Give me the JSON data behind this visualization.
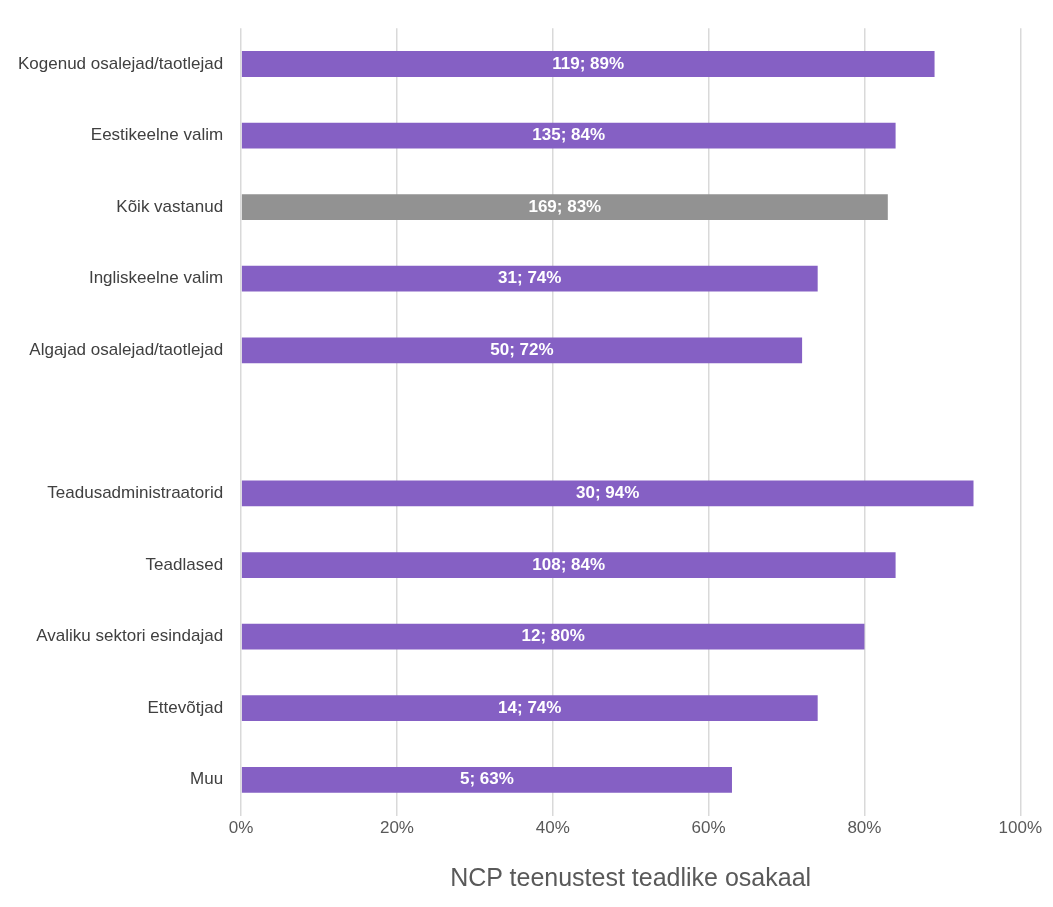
{
  "chart_data": {
    "type": "bar",
    "orientation": "horizontal",
    "xlabel": "NCP teenustest teadlike osakaal",
    "categories": [
      "Kogenud osalejad/taotlejad",
      "Eestikeelne valim",
      "Kõik vastanud",
      "Ingliskeelne valim",
      "Algajad osalejad/taotlejad",
      null,
      "Teadusadministraatorid",
      "Teadlased",
      "Avaliku sektori esindajad",
      "Ettevõtjad",
      "Muu"
    ],
    "values": [
      89,
      84,
      83,
      74,
      72,
      null,
      94,
      84,
      80,
      74,
      63
    ],
    "colors": [
      "#8560c4",
      "#8560c4",
      "#929292",
      "#8560c4",
      "#8560c4",
      "#8560c4",
      "#8560c4",
      "#8560c4",
      "#8560c4",
      "#8560c4",
      "#8560c4"
    ],
    "value_labels": [
      "119; 89%",
      "135; 84%",
      "169; 83%",
      "31; 74%",
      "50; 72%",
      null,
      "30; 94%",
      "108; 84%",
      "12; 80%",
      "14; 74%",
      "5; 63%"
    ],
    "xlim": [
      0,
      100
    ],
    "xticks": [
      {
        "value": 0,
        "label": "0%"
      },
      {
        "value": 20,
        "label": "20%"
      },
      {
        "value": 40,
        "label": "40%"
      },
      {
        "value": 60,
        "label": "60%"
      },
      {
        "value": 80,
        "label": "80%"
      },
      {
        "value": 100,
        "label": "100%"
      }
    ],
    "grid": "x",
    "legend": false
  }
}
